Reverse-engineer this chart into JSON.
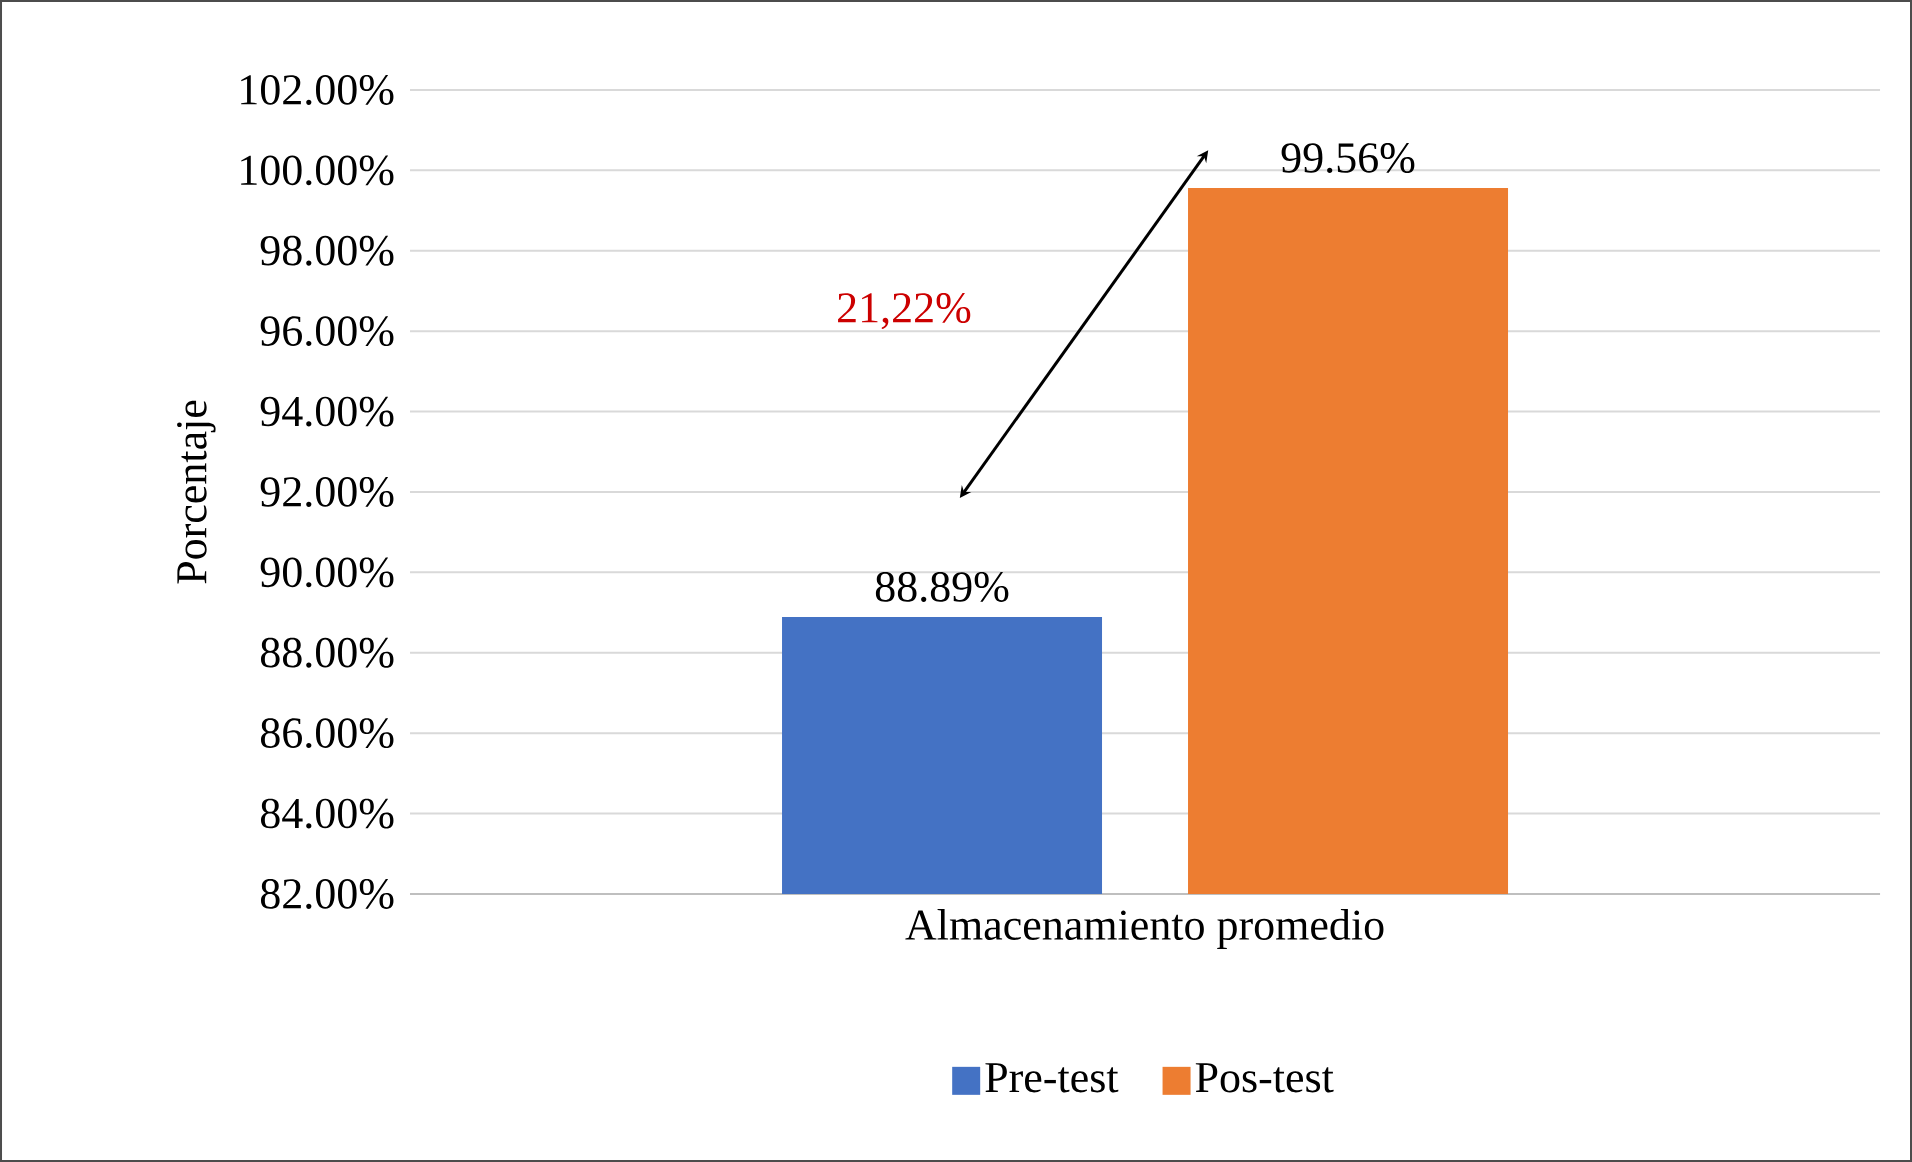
{
  "chart_data": {
    "type": "bar",
    "ylabel": "Porcentaje",
    "categories": [
      "Almacenamiento promedio"
    ],
    "series": [
      {
        "name": "Pre-test",
        "color": "#4472c4",
        "values": [
          88.89
        ],
        "value_labels": [
          "88.89%"
        ]
      },
      {
        "name": "Pos-test",
        "color": "#ed7d31",
        "values": [
          99.56
        ],
        "value_labels": [
          "99.56%"
        ]
      }
    ],
    "ylim": [
      82,
      102
    ],
    "yticks": [
      {
        "value": 82,
        "label": "82.00%"
      },
      {
        "value": 84,
        "label": "84.00%"
      },
      {
        "value": 86,
        "label": "86.00%"
      },
      {
        "value": 88,
        "label": "88.00%"
      },
      {
        "value": 90,
        "label": "90.00%"
      },
      {
        "value": 92,
        "label": "92.00%"
      },
      {
        "value": 94,
        "label": "94.00%"
      },
      {
        "value": 96,
        "label": "96.00%"
      },
      {
        "value": 98,
        "label": "98.00%"
      },
      {
        "value": 100,
        "label": "100.00%"
      },
      {
        "value": 102,
        "label": "102.00%"
      }
    ],
    "annotations": [
      "21,22%"
    ],
    "grid": "y",
    "legend": "bottom"
  }
}
